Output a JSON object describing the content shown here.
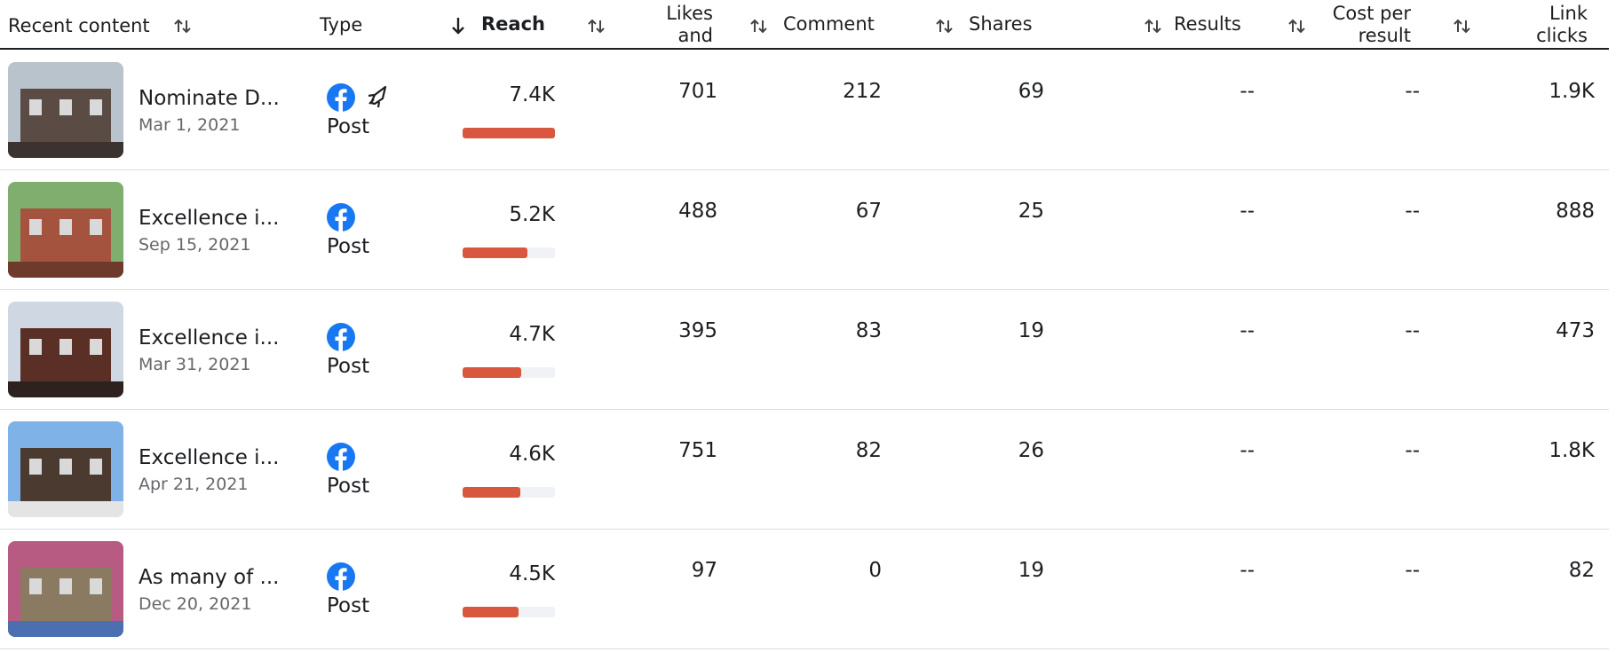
{
  "table": {
    "headers": [
      "Recent content",
      "Type",
      "Reach",
      "Likes and",
      "Comment",
      "Shares",
      "Results",
      "Cost per result",
      "Link clicks"
    ],
    "rows": [
      {
        "title": "Nominate D...",
        "date": "Mar 1, 2021",
        "type": "Post",
        "boosted": true,
        "reach": {
          "value": 7400,
          "label": "7.4K"
        },
        "likes": 701,
        "comments": 212,
        "shares": 69,
        "results": "--",
        "cost": "--",
        "link_clicks": "1.9K"
      },
      {
        "title": "Excellence i...",
        "date": "Sep 15, 2021",
        "type": "Post",
        "boosted": false,
        "reach": {
          "value": 5200,
          "label": "5.2K"
        },
        "likes": 488,
        "comments": 67,
        "shares": 25,
        "results": "--",
        "cost": "--",
        "link_clicks": 888
      },
      {
        "title": "Excellence i...",
        "date": "Mar 31, 2021",
        "type": "Post",
        "boosted": false,
        "reach": {
          "value": 4700,
          "label": "4.7K"
        },
        "likes": 395,
        "comments": 83,
        "shares": 19,
        "results": "--",
        "cost": "--",
        "link_clicks": 473
      },
      {
        "title": "Excellence i...",
        "date": "Apr 21, 2021",
        "type": "Post",
        "boosted": false,
        "reach": {
          "value": 4600,
          "label": "4.6K"
        },
        "likes": 751,
        "comments": 82,
        "shares": 26,
        "results": "--",
        "cost": "--",
        "link_clicks": "1.8K"
      },
      {
        "title": "As many of ...",
        "date": "Dec 20, 2021",
        "type": "Post",
        "boosted": false,
        "reach": {
          "value": 4500,
          "label": "4.5K"
        },
        "likes": 97,
        "comments": 0,
        "shares": 19,
        "results": "--",
        "cost": "--",
        "link_clicks": 82
      }
    ]
  }
}
